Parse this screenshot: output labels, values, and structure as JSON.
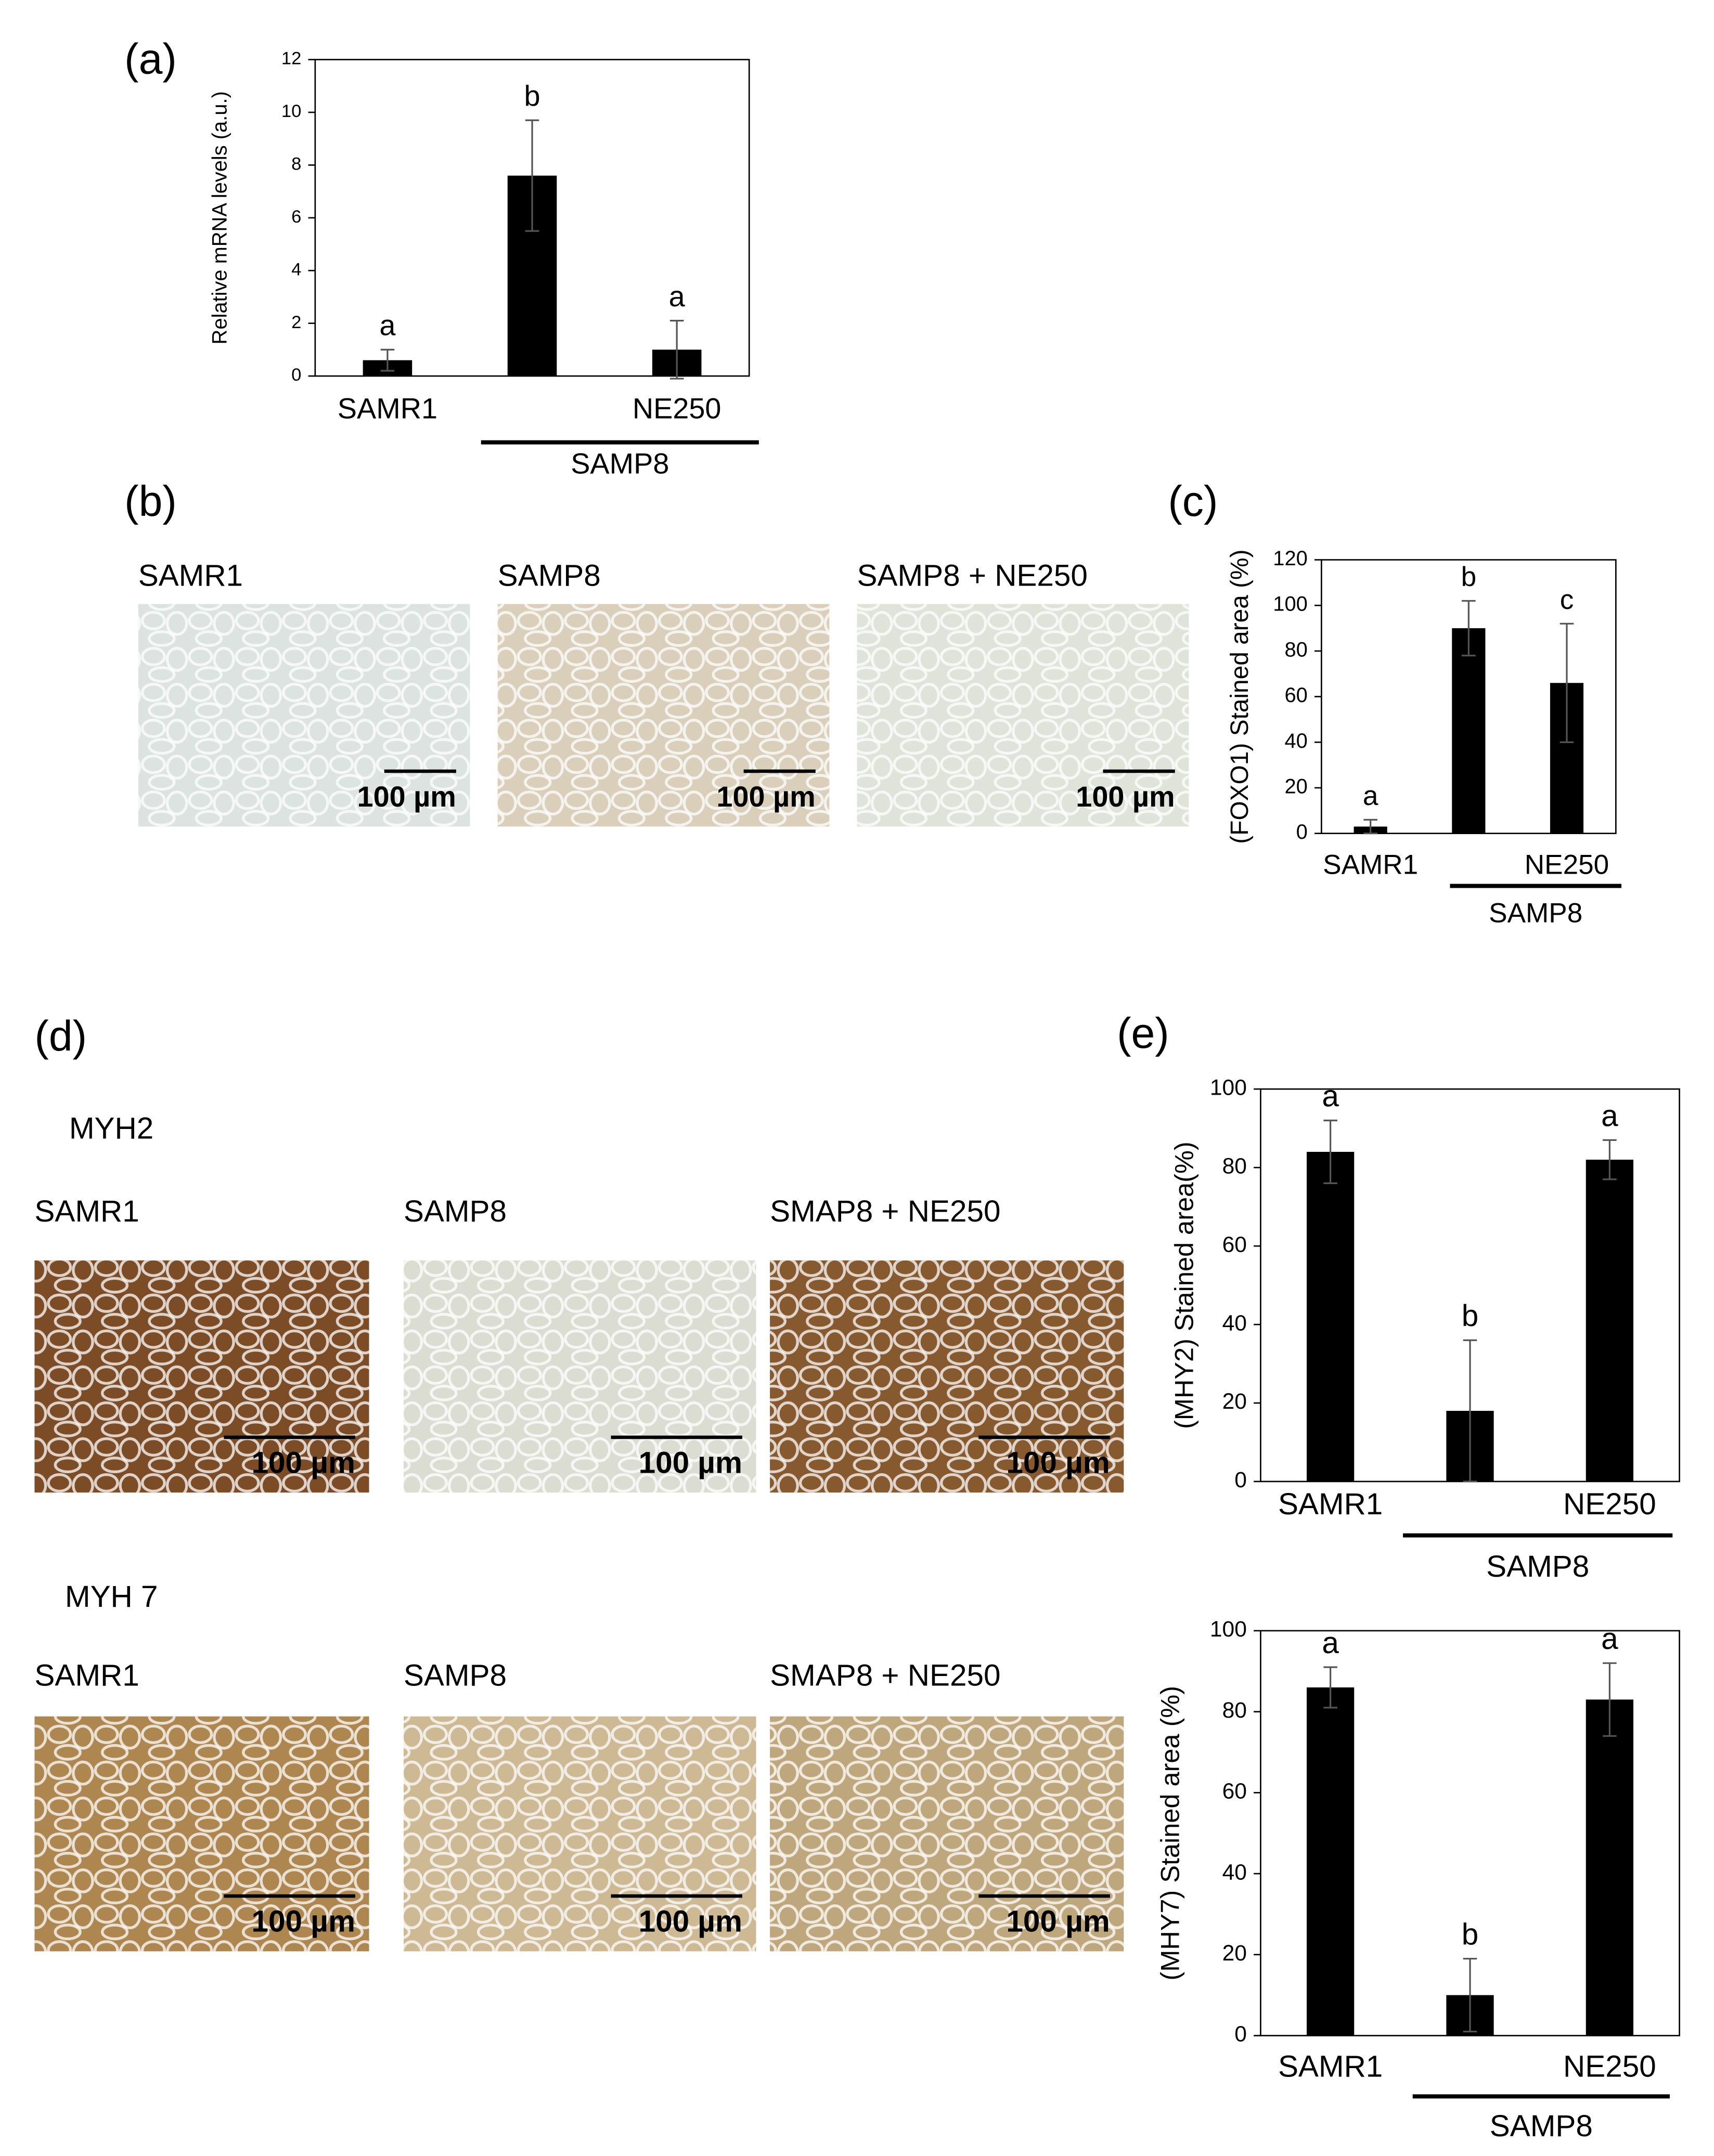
{
  "chart_data": [
    {
      "type": "bar",
      "panel_label": "(a)",
      "ylabel": "Relative mRNA levels (a.u.)",
      "categories": [
        "SAMR1",
        null,
        "NE250"
      ],
      "group_label": "SAMP8",
      "values": [
        0.6,
        7.6,
        1.0
      ],
      "errors": [
        0.4,
        2.1,
        1.1
      ],
      "letters": [
        "a",
        "b",
        "a"
      ],
      "color": "#000000",
      "ylim": [
        0,
        12
      ],
      "yticks": [
        0,
        2,
        4,
        6,
        8,
        10,
        12
      ],
      "grid": false
    },
    {
      "type": "bar",
      "panel_label": "(c)",
      "ylabel": "(FOXO1) Stained area (%)",
      "categories": [
        "SAMR1",
        null,
        "NE250"
      ],
      "group_label": "SAMP8",
      "values": [
        3,
        90,
        66
      ],
      "errors": [
        3,
        12,
        26
      ],
      "letters": [
        "a",
        "b",
        "c"
      ],
      "color": "#000000",
      "ylim": [
        0,
        120
      ],
      "yticks": [
        0,
        20,
        40,
        60,
        80,
        100,
        120
      ],
      "grid": false
    },
    {
      "type": "bar",
      "panel_label": "(e)",
      "ylabel": "(MHY2) Stained area(%)",
      "categories": [
        "SAMR1",
        null,
        "NE250"
      ],
      "group_label": "SAMP8",
      "values": [
        84,
        18,
        82
      ],
      "errors": [
        8,
        18,
        5
      ],
      "letters": [
        "a",
        "b",
        "a"
      ],
      "color": "#000000",
      "ylim": [
        0,
        100
      ],
      "yticks": [
        0,
        20,
        40,
        60,
        80,
        100
      ],
      "grid": false
    },
    {
      "type": "bar",
      "ylabel": "(MHY7) Stained area (%)",
      "categories": [
        "SAMR1",
        null,
        "NE250"
      ],
      "group_label": "SAMP8",
      "values": [
        86,
        10,
        83
      ],
      "errors": [
        5,
        9,
        9
      ],
      "letters": [
        "a",
        "b",
        "a"
      ],
      "color": "#000000",
      "ylim": [
        0,
        100
      ],
      "yticks": [
        0,
        20,
        40,
        60,
        80,
        100
      ],
      "grid": false
    }
  ],
  "micrographs": {
    "b": {
      "panel_label": "(b)",
      "panels": [
        {
          "title": "SAMR1",
          "scale": "100 µm"
        },
        {
          "title": "SAMP8",
          "scale": "100 µm"
        },
        {
          "title": "SAMP8 + NE250",
          "scale": "100 µm"
        }
      ]
    },
    "d": {
      "panel_label": "(d)",
      "rows": [
        {
          "marker": "MYH2",
          "panels": [
            {
              "title": "SAMR1",
              "scale": "100 µm"
            },
            {
              "title": "SAMP8",
              "scale": "100 µm"
            },
            {
              "title": "SMAP8 + NE250",
              "scale": "100 µm"
            }
          ]
        },
        {
          "marker": "MYH 7",
          "panels": [
            {
              "title": "SAMR1",
              "scale": "100 µm"
            },
            {
              "title": "SAMP8",
              "scale": "100 µm"
            },
            {
              "title": "SMAP8 + NE250",
              "scale": "100 µm"
            }
          ]
        }
      ]
    }
  }
}
